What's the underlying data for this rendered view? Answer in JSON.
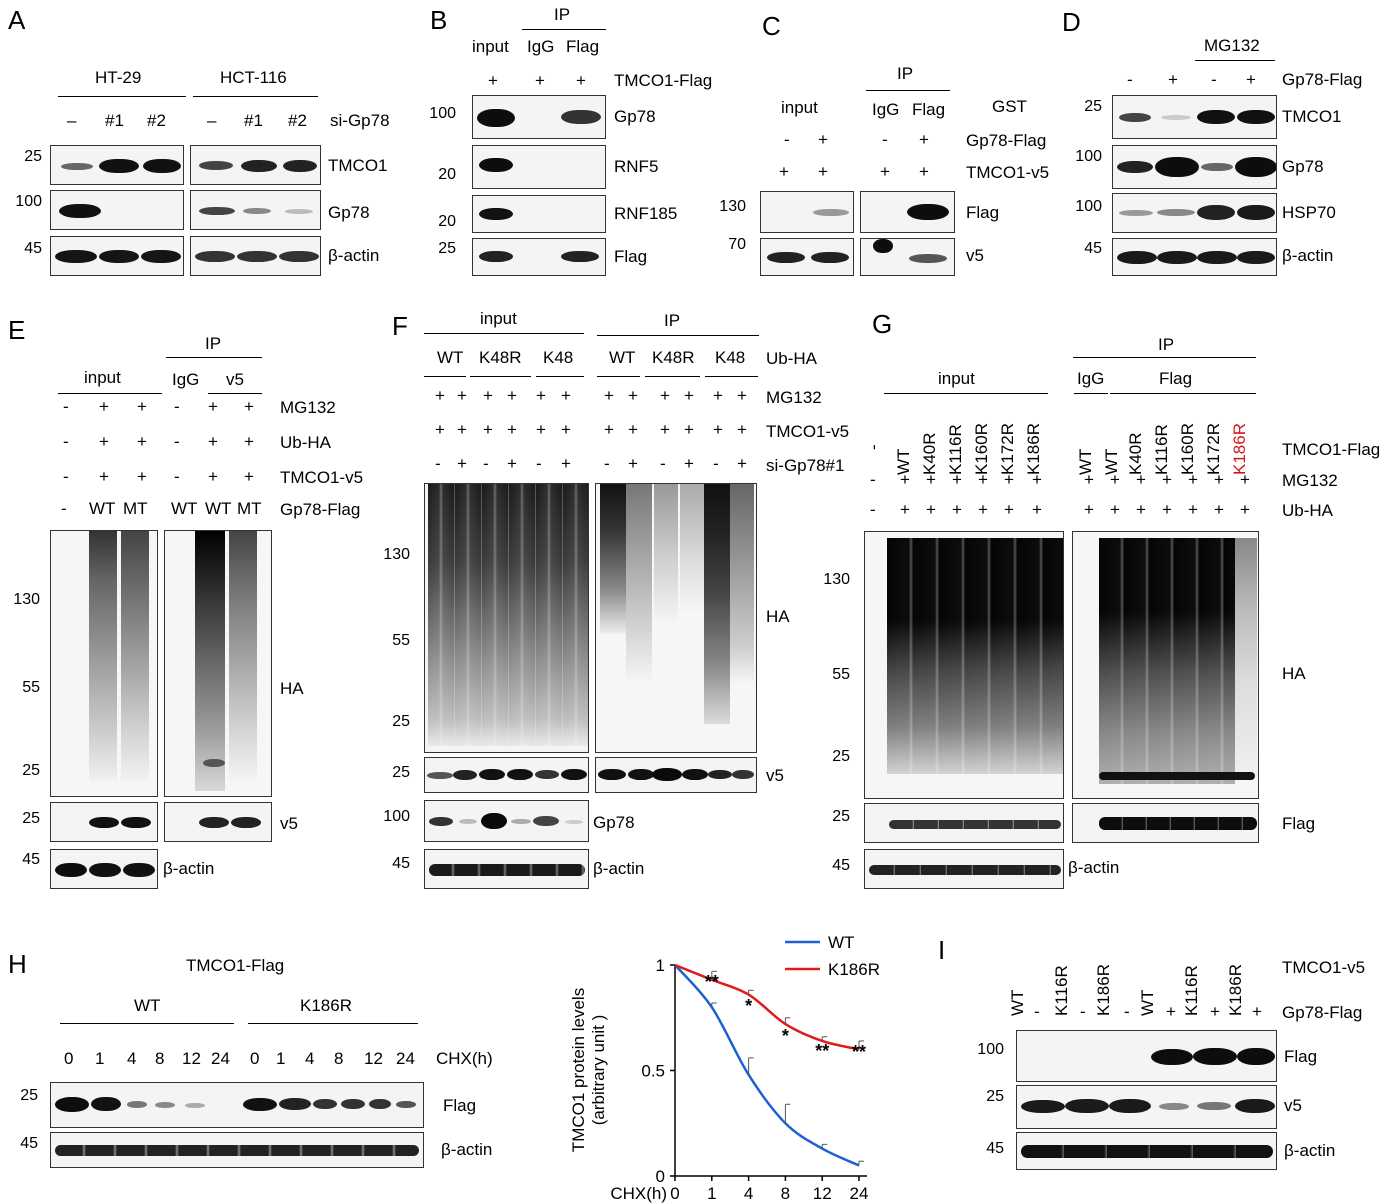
{
  "panels": {
    "A": "A",
    "B": "B",
    "C": "C",
    "D": "D",
    "E": "E",
    "F": "F",
    "G": "G",
    "H": "H",
    "I": "I"
  },
  "A": {
    "cell1": "HT-29",
    "cell2": "HCT-116",
    "row_label": "si-Gp78",
    "lanes": [
      "–",
      "#1",
      "#2",
      "–",
      "#1",
      "#2"
    ],
    "blots": [
      "TMCO1",
      "Gp78",
      "β-actin"
    ],
    "mw": [
      "25",
      "100",
      "45"
    ]
  },
  "B": {
    "ip": "IP",
    "cols": [
      "input",
      "IgG",
      "Flag"
    ],
    "plus": [
      "+",
      "+",
      "+"
    ],
    "row_label": "TMCO1-Flag",
    "blots": [
      "Gp78",
      "RNF5",
      "RNF185",
      "Flag"
    ],
    "mw": [
      "100",
      "20",
      "20",
      "25"
    ]
  },
  "C": {
    "ip": "IP",
    "input": "input",
    "cols": [
      "IgG",
      "Flag"
    ],
    "gst": "GST",
    "rows": [
      {
        "label": "Gp78-Flag",
        "vals": [
          "-",
          "+",
          "-",
          "+"
        ]
      },
      {
        "label": "TMCO1-v5",
        "vals": [
          "+",
          "+",
          "+",
          "+"
        ]
      }
    ],
    "blots": [
      "Flag",
      "v5"
    ],
    "mw": [
      "130",
      "70"
    ]
  },
  "D": {
    "mg": "MG132",
    "row_label": "Gp78-Flag",
    "vals": [
      "-",
      "+",
      "-",
      "+"
    ],
    "blots": [
      "TMCO1",
      "Gp78",
      "HSP70",
      "β-actin"
    ],
    "mw": [
      "25",
      "100",
      "100",
      "45"
    ]
  },
  "E": {
    "ip": "IP",
    "input": "input",
    "cols": [
      "IgG",
      "v5"
    ],
    "rows": [
      {
        "label": "MG132",
        "vals": [
          "-",
          "+",
          "+",
          "-",
          "+",
          "+"
        ]
      },
      {
        "label": "Ub-HA",
        "vals": [
          "-",
          "+",
          "+",
          "-",
          "+",
          "+"
        ]
      },
      {
        "label": "TMCO1-v5",
        "vals": [
          "-",
          "+",
          "+",
          "-",
          "+",
          "+"
        ]
      },
      {
        "label": "Gp78-Flag",
        "vals": [
          "-",
          "WT",
          "MT",
          "WT",
          "WT",
          "MT"
        ]
      }
    ],
    "blots": [
      "HA",
      "v5",
      "β-actin"
    ],
    "mw": [
      "130",
      "55",
      "25",
      "25",
      "45"
    ]
  },
  "F": {
    "input": "input",
    "ip": "IP",
    "ub": [
      "WT",
      "K48R",
      "K48",
      "WT",
      "K48R",
      "K48"
    ],
    "ub_label": "Ub-HA",
    "rows": [
      {
        "label": "MG132",
        "vals": [
          "+",
          "+",
          "+",
          "+",
          "+",
          "+",
          "+",
          "+",
          "+",
          "+",
          "+",
          "+"
        ]
      },
      {
        "label": "TMCO1-v5",
        "vals": [
          "+",
          "+",
          "+",
          "+",
          "+",
          "+",
          "+",
          "+",
          "+",
          "+",
          "+",
          "+"
        ]
      },
      {
        "label": "si-Gp78#1",
        "vals": [
          "-",
          "+",
          "-",
          "+",
          "-",
          "+",
          "-",
          "+",
          "-",
          "+",
          "-",
          "+"
        ]
      }
    ],
    "blots": [
      "HA",
      "v5",
      "Gp78",
      "β-actin"
    ],
    "mw": [
      "130",
      "55",
      "25",
      "25",
      "100",
      "45"
    ]
  },
  "G": {
    "input": "input",
    "ip": "IP",
    "igg": "IgG",
    "flag": "Flag",
    "lanes_in": [
      "-",
      "WT",
      "K40R",
      "K116R",
      "K160R",
      "K172R",
      "K186R"
    ],
    "lanes_ip": [
      "WT",
      "WT",
      "K40R",
      "K116R",
      "K160R",
      "K172R",
      "K186R"
    ],
    "row_label": "TMCO1-Flag",
    "rows": [
      {
        "label": "MG132",
        "vals": [
          "-",
          "+",
          "+",
          "+",
          "+",
          "+",
          "+",
          "+",
          "+",
          "+",
          "+",
          "+",
          "+",
          "+"
        ]
      },
      {
        "label": "Ub-HA",
        "vals": [
          "-",
          "+",
          "+",
          "+",
          "+",
          "+",
          "+",
          "+",
          "+",
          "+",
          "+",
          "+",
          "+",
          "+"
        ]
      }
    ],
    "blots": [
      "HA",
      "Flag",
      "β-actin"
    ],
    "mw": [
      "130",
      "55",
      "25",
      "25",
      "45"
    ]
  },
  "H": {
    "title": "TMCO1-Flag",
    "g1": "WT",
    "g2": "K186R",
    "times": [
      "0",
      "1",
      "4",
      "8",
      "12",
      "24",
      "0",
      "1",
      "4",
      "8",
      "12",
      "24"
    ],
    "chx": "CHX(h)",
    "blots": [
      "Flag",
      "β-actin"
    ],
    "mw": [
      "25",
      "45"
    ]
  },
  "I": {
    "lanes": [
      "WT",
      "K116R",
      "K186R",
      "WT",
      "K116R",
      "K186R"
    ],
    "row1": "TMCO1-v5",
    "vals": [
      "-",
      "-",
      "-",
      "+",
      "+",
      "+"
    ],
    "row2": "Gp78-Flag",
    "blots": [
      "Flag",
      "v5",
      "β-actin"
    ],
    "mw": [
      "100",
      "25",
      "45"
    ]
  },
  "chart_data": {
    "type": "line",
    "x": [
      0,
      1,
      4,
      8,
      12,
      24
    ],
    "x_tick_labels": [
      "0",
      "1",
      "4",
      "8",
      "12",
      "24"
    ],
    "xlabel": "CHX(h)",
    "ylabel": "TMCO1 protein levels (arbitrary unit )",
    "ylim": [
      0,
      1
    ],
    "y_ticks": [
      "0",
      "0.5",
      "1"
    ],
    "series": [
      {
        "name": "WT",
        "color": "#1f5fd6",
        "values": [
          1.0,
          0.8,
          0.48,
          0.25,
          0.13,
          0.05
        ],
        "errors": [
          0,
          0.02,
          0.08,
          0.09,
          0.02,
          0.02
        ]
      },
      {
        "name": "K186R",
        "color": "#e01b1b",
        "values": [
          1.0,
          0.93,
          0.86,
          0.72,
          0.64,
          0.6
        ],
        "errors": [
          0,
          0.04,
          0.02,
          0.03,
          0.02,
          0.04
        ]
      }
    ],
    "annotations": [
      {
        "x": 1,
        "text": "**"
      },
      {
        "x": 4,
        "text": "*"
      },
      {
        "x": 8,
        "text": "*"
      },
      {
        "x": 12,
        "text": "**"
      },
      {
        "x": 24,
        "text": "**"
      }
    ],
    "legend": "top-right"
  }
}
